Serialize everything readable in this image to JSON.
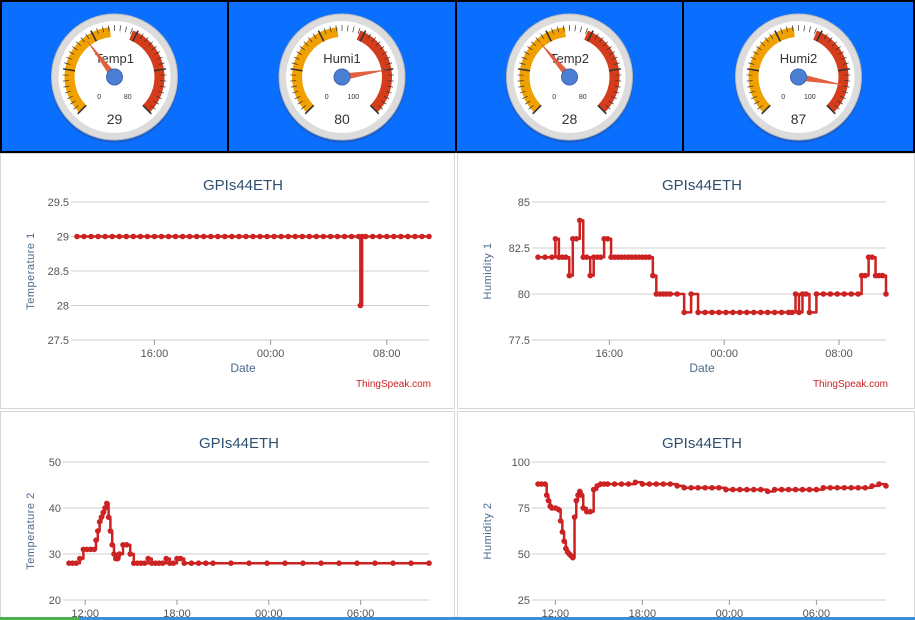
{
  "colors": {
    "gauge_bg": "#0a6eff",
    "series": "#cc2222",
    "title": "#2f4f6f",
    "axis_label": "#4a6a8a",
    "credit": "#cc2222",
    "needle": "#e06040",
    "hub": "#4a7fd4",
    "yellow_band": "#f0a000",
    "red_band": "#d43c1c"
  },
  "gauges": [
    {
      "label": "Temp1",
      "value": 29,
      "value_text": "29",
      "min": 0,
      "max": 80,
      "min_text": "0",
      "max_text": "80"
    },
    {
      "label": "Humi1",
      "value": 80,
      "value_text": "80",
      "min": 0,
      "max": 100,
      "min_text": "0",
      "max_text": "100"
    },
    {
      "label": "Temp2",
      "value": 28,
      "value_text": "28",
      "min": 0,
      "max": 80,
      "min_text": "0",
      "max_text": "80"
    },
    {
      "label": "Humi2",
      "value": 87,
      "value_text": "87",
      "min": 0,
      "max": 100,
      "min_text": "0",
      "max_text": "100"
    }
  ],
  "chart_data": [
    {
      "type": "line",
      "title": "GPIs44ETH",
      "xlabel": "Date",
      "ylabel": "Temperature 1",
      "credit": "ThingSpeak.com",
      "xlim": [
        0,
        100
      ],
      "ylim": [
        27.5,
        29.5
      ],
      "yticks": [
        27.5,
        28,
        28.5,
        29,
        29.5
      ],
      "ytick_labels": [
        "27.5",
        "28",
        "28.5",
        "29",
        "29.5"
      ],
      "xticks": [
        {
          "x": 22,
          "label": "16:00"
        },
        {
          "x": 55,
          "label": "00:00"
        },
        {
          "x": 88,
          "label": "08:00"
        }
      ],
      "series": [
        {
          "x": [
            0,
            2,
            4,
            6,
            8,
            10,
            12,
            14,
            16,
            18,
            20,
            22,
            24,
            26,
            28,
            30,
            32,
            34,
            36,
            38,
            40,
            42,
            44,
            46,
            48,
            50,
            52,
            54,
            56,
            58,
            60,
            62,
            64,
            66,
            68,
            70,
            72,
            74,
            76,
            78,
            80,
            80.5,
            81,
            82,
            84,
            86,
            88,
            90,
            92,
            94,
            96,
            98,
            100
          ],
          "y": [
            29,
            29,
            29,
            29,
            29,
            29,
            29,
            29,
            29,
            29,
            29,
            29,
            29,
            29,
            29,
            29,
            29,
            29,
            29,
            29,
            29,
            29,
            29,
            29,
            29,
            29,
            29,
            29,
            29,
            29,
            29,
            29,
            29,
            29,
            29,
            29,
            29,
            29,
            29,
            29,
            29,
            28,
            29,
            29,
            29,
            29,
            29,
            29,
            29,
            29,
            29,
            29,
            29
          ]
        }
      ]
    },
    {
      "type": "line",
      "title": "GPIs44ETH",
      "xlabel": "Date",
      "ylabel": "Humidity 1",
      "credit": "ThingSpeak.com",
      "xlim": [
        0,
        100
      ],
      "ylim": [
        77.5,
        85
      ],
      "yticks": [
        77.5,
        80,
        82.5,
        85
      ],
      "ytick_labels": [
        "77.5",
        "80",
        "82.5",
        "85"
      ],
      "xticks": [
        {
          "x": 20.5,
          "label": "16:00"
        },
        {
          "x": 53.5,
          "label": "00:00"
        },
        {
          "x": 86.5,
          "label": "08:00"
        }
      ],
      "series": [
        {
          "x": [
            0,
            2,
            4,
            5,
            6,
            7,
            8,
            9,
            10,
            11,
            12,
            13,
            14,
            15,
            16,
            17,
            18,
            19,
            20,
            21,
            22,
            23,
            24,
            25,
            26,
            27,
            28,
            29,
            30,
            31,
            32,
            33,
            34,
            35,
            36,
            37,
            38,
            40,
            42,
            44,
            46,
            48,
            50,
            52,
            54,
            56,
            58,
            60,
            62,
            64,
            66,
            68,
            70,
            72,
            73,
            74,
            75,
            76,
            77,
            78,
            80,
            82,
            84,
            86,
            88,
            90,
            92,
            93,
            94,
            95,
            96,
            97,
            98,
            99,
            100
          ],
          "y": [
            82,
            82,
            82,
            83,
            82,
            82,
            82,
            81,
            83,
            83,
            84,
            82,
            82,
            81,
            82,
            82,
            82,
            83,
            83,
            82,
            82,
            82,
            82,
            82,
            82,
            82,
            82,
            82,
            82,
            82,
            82,
            81,
            80,
            80,
            80,
            80,
            80,
            80,
            79,
            80,
            79,
            79,
            79,
            79,
            79,
            79,
            79,
            79,
            79,
            79,
            79,
            79,
            79,
            79,
            79,
            80,
            79,
            80,
            80,
            79,
            80,
            80,
            80,
            80,
            80,
            80,
            80,
            81,
            81,
            82,
            82,
            81,
            81,
            81,
            80
          ]
        }
      ]
    },
    {
      "type": "line",
      "title": "GPIs44ETH",
      "xlabel": "",
      "ylabel": "Temperature 2",
      "credit": "",
      "xlim": [
        0,
        100
      ],
      "ylim": [
        20,
        50
      ],
      "yticks": [
        20,
        30,
        40,
        50
      ],
      "ytick_labels": [
        "20",
        "30",
        "40",
        "50"
      ],
      "xticks": [
        {
          "x": 4.5,
          "label": "12:00"
        },
        {
          "x": 30,
          "label": "18:00"
        },
        {
          "x": 55.5,
          "label": "00:00"
        },
        {
          "x": 81,
          "label": "06:00"
        }
      ],
      "series": [
        {
          "x": [
            0,
            1,
            2,
            3,
            4,
            5,
            6,
            7,
            7.5,
            8,
            8.5,
            9,
            9.5,
            10,
            10.5,
            11,
            11.5,
            12,
            12.5,
            13,
            13.5,
            14,
            15,
            16,
            17,
            18,
            19,
            20,
            21,
            22,
            23,
            24,
            25,
            26,
            27,
            28,
            29,
            30,
            31,
            32,
            34,
            36,
            38,
            40,
            45,
            50,
            55,
            60,
            65,
            70,
            75,
            80,
            85,
            90,
            95,
            100
          ],
          "y": [
            28,
            28,
            28,
            29,
            31,
            31,
            31,
            31,
            33,
            35,
            37,
            38,
            39,
            40,
            41,
            38,
            35,
            32,
            30,
            29,
            29,
            30,
            32,
            32,
            30,
            28,
            28,
            28,
            28,
            29,
            28,
            28,
            28,
            28,
            29,
            28,
            28,
            29,
            29,
            28,
            28,
            28,
            28,
            28,
            28,
            28,
            28,
            28,
            28,
            28,
            28,
            28,
            28,
            28,
            28,
            28
          ]
        }
      ]
    },
    {
      "type": "line",
      "title": "GPIs44ETH",
      "xlabel": "",
      "ylabel": "Humidity 2",
      "credit": "",
      "xlim": [
        0,
        100
      ],
      "ylim": [
        25,
        100
      ],
      "yticks": [
        25,
        50,
        75,
        100
      ],
      "ytick_labels": [
        "25",
        "50",
        "75",
        "100"
      ],
      "xticks": [
        {
          "x": 5,
          "label": "12:00"
        },
        {
          "x": 30,
          "label": "18:00"
        },
        {
          "x": 55,
          "label": "00:00"
        },
        {
          "x": 80,
          "label": "06:00"
        }
      ],
      "series": [
        {
          "x": [
            0,
            1,
            2,
            2.5,
            3,
            3.5,
            4,
            5,
            6,
            6.5,
            7,
            7.5,
            8,
            8.5,
            9,
            9.5,
            10,
            10.5,
            11,
            11.5,
            12,
            12.5,
            13,
            14,
            15,
            16,
            17,
            18,
            19,
            20,
            22,
            24,
            26,
            28,
            30,
            32,
            34,
            36,
            38,
            40,
            42,
            44,
            46,
            48,
            50,
            52,
            54,
            56,
            58,
            60,
            62,
            64,
            66,
            68,
            70,
            72,
            74,
            76,
            78,
            80,
            82,
            84,
            86,
            88,
            90,
            92,
            94,
            96,
            98,
            100
          ],
          "y": [
            88,
            88,
            88,
            82,
            79,
            76,
            75,
            75,
            74,
            68,
            62,
            57,
            53,
            51,
            50,
            49,
            48,
            70,
            79,
            82,
            84,
            82,
            75,
            73,
            73,
            85,
            87,
            88,
            88,
            88,
            88,
            88,
            88,
            89,
            88,
            88,
            88,
            88,
            88,
            87,
            86,
            86,
            86,
            86,
            86,
            86,
            85,
            85,
            85,
            85,
            85,
            85,
            84,
            85,
            85,
            85,
            85,
            85,
            85,
            85,
            86,
            86,
            86,
            86,
            86,
            86,
            86,
            87,
            88,
            87
          ]
        }
      ]
    }
  ]
}
